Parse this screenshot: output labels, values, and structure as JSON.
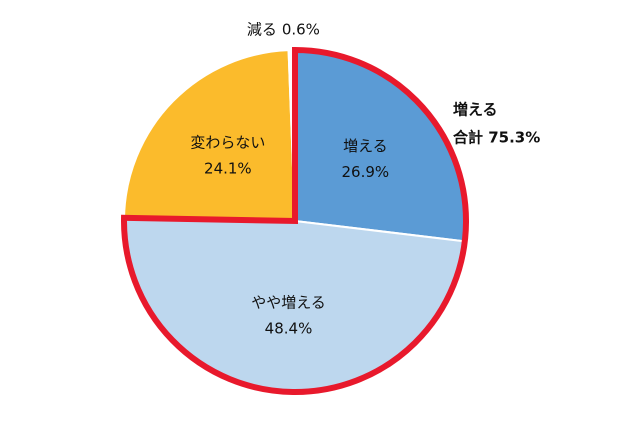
{
  "chart_data": {
    "type": "pie",
    "categories": [
      "増える",
      "やや増える",
      "変わらない",
      "減る"
    ],
    "values": [
      26.9,
      48.4,
      24.1,
      0.6
    ],
    "value_labels": [
      "26.9%",
      "48.4%",
      "24.1%",
      "0.6%"
    ],
    "colors": [
      "#5b9bd5",
      "#bdd7ee",
      "#fbbb2c",
      "#ffffff"
    ],
    "annotation": [
      "増える",
      "合計 75.3%"
    ],
    "annotation_color": "#e8192c"
  }
}
